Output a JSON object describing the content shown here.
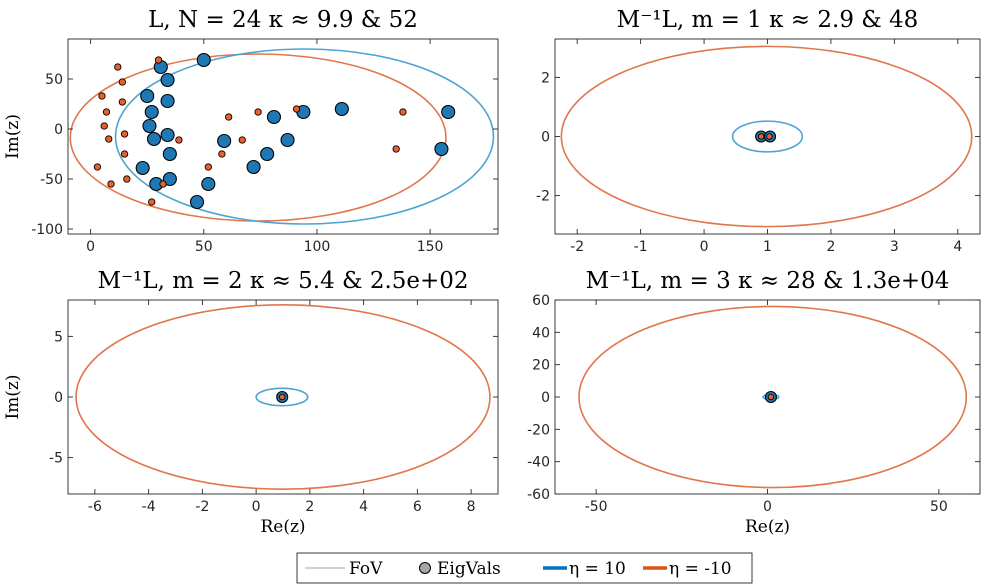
{
  "chart_data": [
    {
      "type": "scatter",
      "title": "L, N = 24   κ ≈ 9.9  &  52",
      "xlabel": "",
      "ylabel": "Im(z)",
      "xlim": [
        -10,
        180
      ],
      "ylim": [
        -105,
        90
      ],
      "xticks": [
        0,
        50,
        100,
        150
      ],
      "xtick_labels": [
        "0",
        "50",
        "100",
        "150"
      ],
      "yticks": [
        -100,
        -50,
        0,
        50
      ],
      "ytick_labels": [
        "-100",
        "-50",
        "0",
        "50"
      ],
      "series": [
        {
          "name": "η = 10",
          "color": "#0072BD",
          "fill": "#1f77b4",
          "fov": {
            "left": 11,
            "right": 178,
            "bottom": -95,
            "top": 80
          },
          "eigvals": [
            {
              "x": 50,
              "y": 69
            },
            {
              "x": 31,
              "y": 62
            },
            {
              "x": 34,
              "y": 49
            },
            {
              "x": 25,
              "y": 33
            },
            {
              "x": 34,
              "y": 28
            },
            {
              "x": 27,
              "y": 17
            },
            {
              "x": 26,
              "y": 3
            },
            {
              "x": 34,
              "y": -6
            },
            {
              "x": 28,
              "y": -10
            },
            {
              "x": 35,
              "y": -25
            },
            {
              "x": 23,
              "y": -39
            },
            {
              "x": 35,
              "y": -50
            },
            {
              "x": 29,
              "y": -55
            },
            {
              "x": 52,
              "y": -55
            },
            {
              "x": 47,
              "y": -73
            },
            {
              "x": 59,
              "y": -12
            },
            {
              "x": 72,
              "y": -38
            },
            {
              "x": 78,
              "y": -25
            },
            {
              "x": 81,
              "y": 12
            },
            {
              "x": 87,
              "y": -11
            },
            {
              "x": 94,
              "y": 17
            },
            {
              "x": 111,
              "y": 20
            },
            {
              "x": 155,
              "y": -20
            },
            {
              "x": 158,
              "y": 17
            }
          ]
        },
        {
          "name": "η = -10",
          "color": "#D95319",
          "fill": "#e8602c",
          "fov": {
            "left": -9,
            "right": 157,
            "bottom": -92,
            "top": 75
          },
          "eigvals": [
            {
              "x": 30,
              "y": 69
            },
            {
              "x": 12,
              "y": 62
            },
            {
              "x": 14,
              "y": 47
            },
            {
              "x": 5,
              "y": 33
            },
            {
              "x": 14,
              "y": 27
            },
            {
              "x": 7,
              "y": 17
            },
            {
              "x": 6,
              "y": 3
            },
            {
              "x": 15,
              "y": -5
            },
            {
              "x": 8,
              "y": -10
            },
            {
              "x": 15,
              "y": -25
            },
            {
              "x": 3,
              "y": -38
            },
            {
              "x": 16,
              "y": -50
            },
            {
              "x": 9,
              "y": -55
            },
            {
              "x": 32,
              "y": -55
            },
            {
              "x": 27,
              "y": -73
            },
            {
              "x": 39,
              "y": -11
            },
            {
              "x": 52,
              "y": -38
            },
            {
              "x": 58,
              "y": -25
            },
            {
              "x": 61,
              "y": 12
            },
            {
              "x": 67,
              "y": -11
            },
            {
              "x": 74,
              "y": 17
            },
            {
              "x": 91,
              "y": 20
            },
            {
              "x": 135,
              "y": -20
            },
            {
              "x": 138,
              "y": 17
            }
          ]
        }
      ]
    },
    {
      "type": "scatter",
      "title": "M⁻¹L, m = 1   κ ≈ 2.9  &  48",
      "xlabel": "",
      "ylabel": "",
      "xlim": [
        -2.35,
        4.35
      ],
      "ylim": [
        -3.3,
        3.3
      ],
      "xticks": [
        -2,
        -1,
        0,
        1,
        2,
        3,
        4
      ],
      "xtick_labels": [
        "-2",
        "-1",
        "0",
        "1",
        "2",
        "3",
        "4"
      ],
      "yticks": [
        -2,
        0,
        2
      ],
      "ytick_labels": [
        "-2",
        "0",
        "2"
      ],
      "series": [
        {
          "name": "η = 10",
          "color": "#0072BD",
          "fill": "#1f77b4",
          "fov": {
            "left": 0.45,
            "right": 1.55,
            "bottom": -0.52,
            "top": 0.52
          },
          "eigvals": [
            {
              "x": 0.9,
              "y": 0.0
            },
            {
              "x": 1.04,
              "y": 0.0
            }
          ]
        },
        {
          "name": "η = -10",
          "color": "#D95319",
          "fill": "#e8602c",
          "fov": {
            "left": -2.25,
            "right": 4.22,
            "bottom": -3.05,
            "top": 3.05
          },
          "eigvals": [
            {
              "x": 0.9,
              "y": 0.0
            },
            {
              "x": 1.03,
              "y": 0.0
            }
          ]
        }
      ]
    },
    {
      "type": "scatter",
      "title": "M⁻¹L, m = 2   κ ≈ 5.4  &  2.5e+02",
      "xlabel": "Re(z)",
      "ylabel": "Im(z)",
      "xlim": [
        -7,
        9
      ],
      "ylim": [
        -8,
        8
      ],
      "xticks": [
        -6,
        -4,
        -2,
        0,
        2,
        4,
        6,
        8
      ],
      "xtick_labels": [
        "-6",
        "-4",
        "-2",
        "0",
        "2",
        "4",
        "6",
        "8"
      ],
      "yticks": [
        -5,
        0,
        5
      ],
      "ytick_labels": [
        "-5",
        "0",
        "5"
      ],
      "series": [
        {
          "name": "η = 10",
          "color": "#0072BD",
          "fill": "#1f77b4",
          "fov": {
            "left": 0.0,
            "right": 1.92,
            "bottom": -0.72,
            "top": 0.72
          },
          "eigvals": [
            {
              "x": 0.97,
              "y": 0.0
            }
          ]
        },
        {
          "name": "η = -10",
          "color": "#D95319",
          "fill": "#e8602c",
          "fov": {
            "left": -6.7,
            "right": 8.7,
            "bottom": -7.6,
            "top": 7.6
          },
          "eigvals": [
            {
              "x": 0.97,
              "y": 0.0
            }
          ]
        }
      ]
    },
    {
      "type": "scatter",
      "title": "M⁻¹L, m = 3   κ ≈ 28  &  1.3e+04",
      "xlabel": "Re(z)",
      "ylabel": "",
      "xlim": [
        -62,
        62
      ],
      "ylim": [
        -60,
        60
      ],
      "xticks": [
        -50,
        0,
        50
      ],
      "xtick_labels": [
        "-50",
        "0",
        "50"
      ],
      "yticks": [
        -60,
        -40,
        -20,
        0,
        20,
        40,
        60
      ],
      "ytick_labels": [
        "-60",
        "-40",
        "-20",
        "0",
        "20",
        "40",
        "60"
      ],
      "series": [
        {
          "name": "η = 10",
          "color": "#0072BD",
          "fill": "#1f77b4",
          "fov": {
            "left": -1.3,
            "right": 3.3,
            "bottom": -1.5,
            "top": 1.5
          },
          "eigvals": [
            {
              "x": 1.0,
              "y": 0.0
            }
          ]
        },
        {
          "name": "η = -10",
          "color": "#D95319",
          "fill": "#e8602c",
          "fov": {
            "left": -55,
            "right": 58,
            "bottom": -56,
            "top": 56
          },
          "eigvals": [
            {
              "x": 1.0,
              "y": 0.0
            }
          ]
        }
      ]
    }
  ],
  "legend": {
    "items": [
      {
        "label": "FoV",
        "kind": "line",
        "color": "#a6a6a6"
      },
      {
        "label": "EigVals",
        "kind": "marker",
        "color": "#a6a6a6"
      },
      {
        "label": "η = 10",
        "kind": "thick-line",
        "color": "#0072BD"
      },
      {
        "label": "η = -10",
        "kind": "thick-line",
        "color": "#D95319"
      }
    ]
  }
}
